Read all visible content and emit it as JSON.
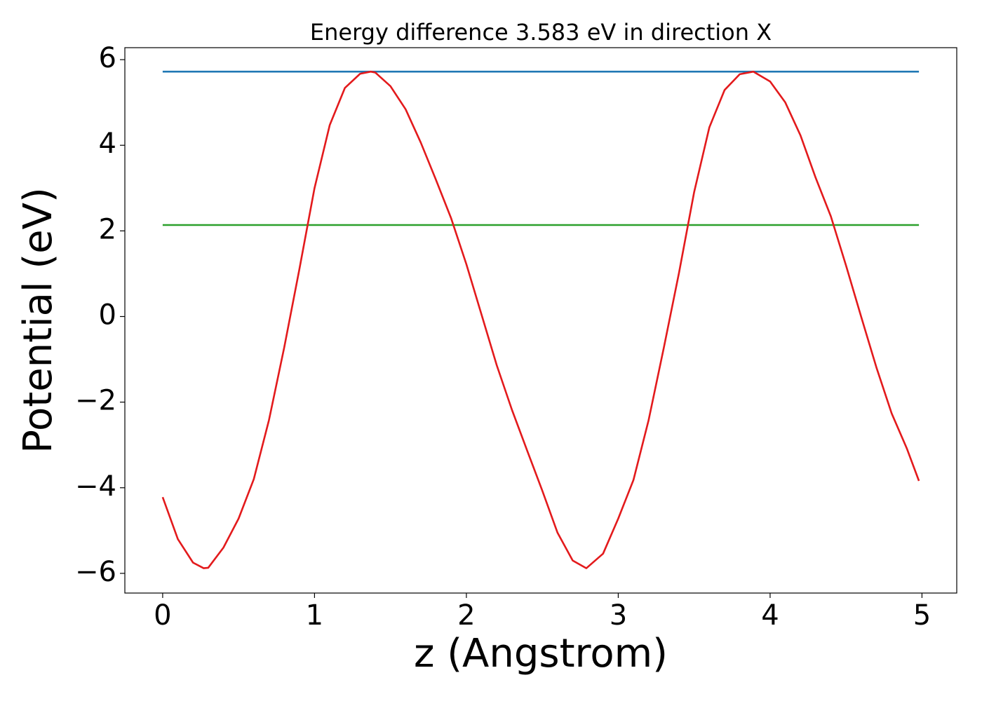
{
  "chart_data": {
    "type": "line",
    "title": "Energy difference 3.583 eV in direction X",
    "xlabel": "z (Angstrom)",
    "ylabel": "Potential (eV)",
    "xlim": [
      -0.249,
      5.229
    ],
    "ylim": [
      -6.46,
      6.28
    ],
    "xticks": [
      0,
      1,
      2,
      3,
      4,
      5
    ],
    "yticks": [
      {
        "value": -6,
        "label": "−6"
      },
      {
        "value": -4,
        "label": "−4"
      },
      {
        "value": -2,
        "label": "−2"
      },
      0,
      2,
      4,
      6
    ],
    "series": [
      {
        "color": "#e31a1c",
        "x": [
          0,
          0.1,
          0.2,
          0.27,
          0.3,
          0.4,
          0.5,
          0.6,
          0.7,
          0.8,
          0.9,
          1.0,
          1.1,
          1.2,
          1.3,
          1.37,
          1.4,
          1.5,
          1.6,
          1.7,
          1.8,
          1.9,
          2.0,
          2.1,
          2.2,
          2.3,
          2.4,
          2.5,
          2.6,
          2.7,
          2.79,
          2.9,
          3.0,
          3.1,
          3.2,
          3.3,
          3.4,
          3.5,
          3.6,
          3.7,
          3.8,
          3.89,
          4.0,
          4.1,
          4.2,
          4.3,
          4.4,
          4.5,
          4.6,
          4.7,
          4.8,
          4.9,
          4.98
        ],
        "values": [
          -4.22,
          -5.2,
          -5.75,
          -5.88,
          -5.87,
          -5.4,
          -4.72,
          -3.8,
          -2.42,
          -0.73,
          1.1,
          3.0,
          4.47,
          5.34,
          5.67,
          5.72,
          5.7,
          5.38,
          4.84,
          4.06,
          3.19,
          2.29,
          1.22,
          0.04,
          -1.14,
          -2.18,
          -3.13,
          -4.07,
          -5.05,
          -5.7,
          -5.88,
          -5.54,
          -4.72,
          -3.82,
          -2.42,
          -0.73,
          1.02,
          2.91,
          4.42,
          5.29,
          5.66,
          5.72,
          5.49,
          5.0,
          4.23,
          3.24,
          2.34,
          1.19,
          -0.01,
          -1.19,
          -2.26,
          -3.08,
          -3.84
        ]
      },
      {
        "color": "#1f77b4",
        "x": [
          0,
          4.98
        ],
        "values": [
          5.72,
          5.72
        ]
      },
      {
        "color": "#2ca02c",
        "x": [
          0,
          4.98
        ],
        "values": [
          2.137,
          2.137
        ]
      }
    ]
  }
}
